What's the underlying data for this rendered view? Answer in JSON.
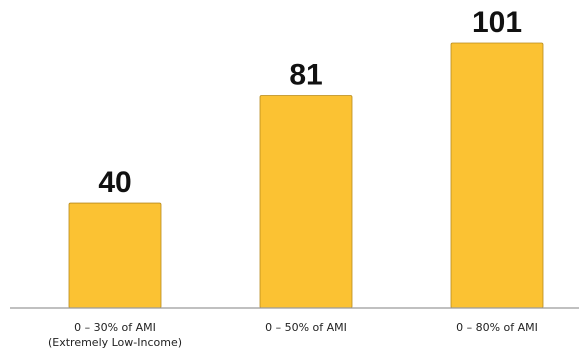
{
  "chart_data": {
    "type": "bar",
    "categories": [
      [
        "0 – 30% of AMI",
        "(Extremely Low-Income)"
      ],
      [
        "0 – 50% of AMI"
      ],
      [
        "0 – 80% of AMI"
      ]
    ],
    "values": [
      40,
      81,
      101
    ],
    "data_labels": [
      "40",
      "81",
      "101"
    ],
    "title": "",
    "xlabel": "",
    "ylabel": "",
    "ylim": [
      0,
      101
    ],
    "grid": false,
    "legend": "none",
    "colors": {
      "bar": "#fbc233",
      "bar_border": "#b88a1c",
      "axis": "#9a9a9a"
    }
  }
}
